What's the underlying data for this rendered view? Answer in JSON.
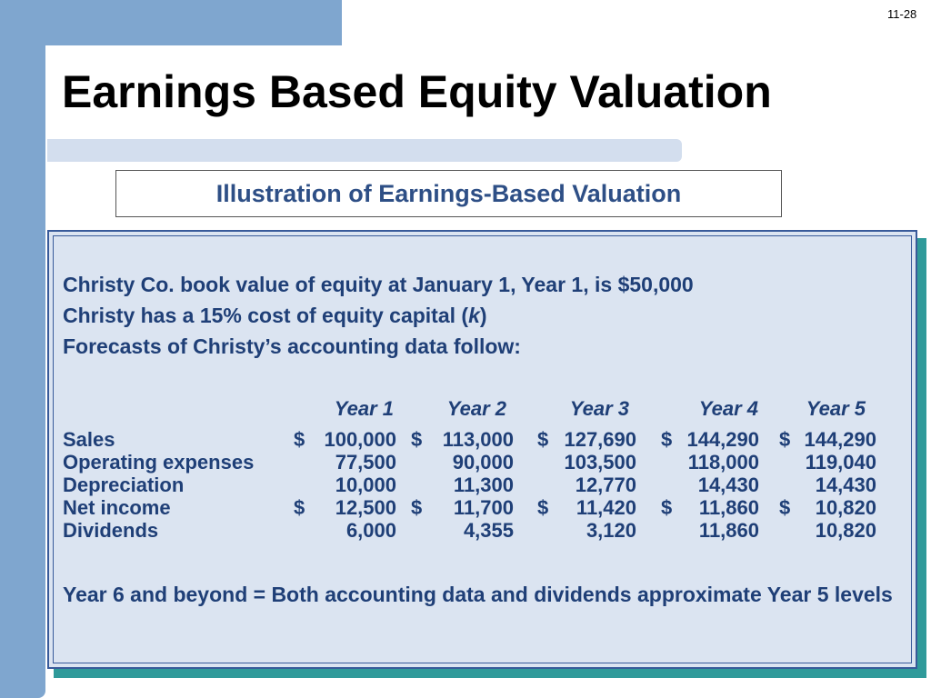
{
  "page_number": "11-28",
  "title": "Earnings Based Equity Valuation",
  "subtitle": "Illustration of Earnings-Based Valuation",
  "intro": {
    "line1": "Christy Co. book value of equity at January 1, Year 1, is $50,000",
    "line2_prefix": "Christy has a 15% cost of equity capital (",
    "line2_symbol": "k",
    "line2_suffix": ")",
    "line3": "Forecasts of Christy’s accounting data follow:"
  },
  "table": {
    "columns": [
      "Year 1",
      "Year 2",
      "Year 3",
      "Year 4",
      "Year 5"
    ],
    "rows": [
      {
        "label": "Sales",
        "symbols": [
          "$",
          "$",
          "$",
          "$",
          "$"
        ],
        "values": [
          "100,000",
          "113,000",
          "127,690",
          "144,290",
          "144,290"
        ]
      },
      {
        "label": "Operating expenses",
        "symbols": [
          "",
          "",
          "",
          "",
          ""
        ],
        "values": [
          "77,500",
          "90,000",
          "103,500",
          "118,000",
          "119,040"
        ]
      },
      {
        "label": "Depreciation",
        "symbols": [
          "",
          "",
          "",
          "",
          ""
        ],
        "values": [
          "10,000",
          "11,300",
          "12,770",
          "14,430",
          "14,430"
        ]
      },
      {
        "label": "Net income",
        "symbols": [
          "$",
          "$",
          "$",
          "$",
          "$"
        ],
        "values": [
          "12,500",
          "11,700",
          "11,420",
          "11,860",
          "10,820"
        ]
      },
      {
        "label": "Dividends",
        "symbols": [
          "",
          "",
          "",
          "",
          ""
        ],
        "values": [
          "6,000",
          "4,355",
          "3,120",
          "11,860",
          "10,820"
        ]
      }
    ]
  },
  "footer": "Year 6 and beyond = Both accounting data and dividends approximate Year 5 levels",
  "colors": {
    "accent_bar": "#7fa6cf",
    "panel_bg": "#dbe4f1",
    "panel_border": "#385a9a",
    "text_blue": "#1f3f77",
    "shadow": "#2f9a9a"
  }
}
